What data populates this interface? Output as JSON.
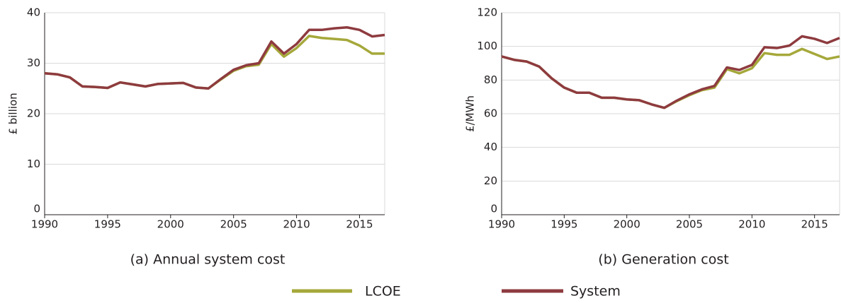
{
  "chart_data": [
    {
      "type": "line",
      "title": "(a) Annual system cost",
      "ylabel": "£ billion",
      "x": [
        1990,
        1991,
        1992,
        1993,
        1994,
        1995,
        1996,
        1997,
        1998,
        1999,
        2000,
        2001,
        2002,
        2003,
        2004,
        2005,
        2006,
        2007,
        2008,
        2009,
        2010,
        2011,
        2012,
        2013,
        2014,
        2015,
        2016,
        2017
      ],
      "xlim": [
        1990,
        2017
      ],
      "xticks": [
        1990,
        1995,
        2000,
        2005,
        2010,
        2015
      ],
      "ylim": [
        0,
        40
      ],
      "yticks": [
        0,
        10,
        20,
        30,
        40
      ],
      "grid": true,
      "legend": "bottom",
      "series": [
        {
          "name": "LCOE",
          "color": "#a5a83a",
          "values": [
            28,
            27.8,
            27.2,
            25.4,
            25.3,
            25.1,
            26.2,
            25.8,
            25.4,
            25.9,
            26,
            26.1,
            25.2,
            25,
            26.8,
            28.5,
            29.4,
            29.7,
            33.8,
            31.3,
            33,
            35.4,
            35,
            34.8,
            34.6,
            33.5,
            31.9,
            31.9
          ]
        },
        {
          "name": "System",
          "color": "#8e3b3f",
          "values": [
            28,
            27.8,
            27.2,
            25.4,
            25.3,
            25.1,
            26.2,
            25.8,
            25.4,
            25.9,
            26,
            26.1,
            25.2,
            25,
            26.9,
            28.7,
            29.6,
            30,
            34.3,
            31.9,
            33.8,
            36.6,
            36.6,
            36.9,
            37.1,
            36.6,
            35.3,
            35.6
          ]
        }
      ]
    },
    {
      "type": "line",
      "title": "(b) Generation cost",
      "ylabel": "£/MWh",
      "x": [
        1990,
        1991,
        1992,
        1993,
        1994,
        1995,
        1996,
        1997,
        1998,
        1999,
        2000,
        2001,
        2002,
        2003,
        2004,
        2005,
        2006,
        2007,
        2008,
        2009,
        2010,
        2011,
        2012,
        2013,
        2014,
        2015,
        2016,
        2017
      ],
      "xlim": [
        1990,
        2017
      ],
      "xticks": [
        1990,
        1995,
        2000,
        2005,
        2010,
        2015
      ],
      "ylim": [
        0,
        120
      ],
      "yticks": [
        0,
        20,
        40,
        60,
        80,
        100,
        120
      ],
      "grid": true,
      "series": [
        {
          "color": "#a5a83a",
          "values": [
            94,
            92,
            91,
            88,
            81,
            75.5,
            72.5,
            72.5,
            69.5,
            69.5,
            68.5,
            68,
            65.5,
            63.5,
            67.5,
            71,
            74,
            75.5,
            86.5,
            84,
            87,
            96,
            95,
            95,
            98.5,
            95.5,
            92.5,
            94
          ]
        },
        {
          "color": "#8e3b3f",
          "values": [
            94,
            92,
            91,
            88,
            81,
            75.5,
            72.5,
            72.5,
            69.5,
            69.5,
            68.5,
            68,
            65.5,
            63.5,
            67.8,
            71.5,
            74.5,
            76.5,
            87.5,
            86,
            89,
            99.5,
            99,
            100.5,
            106,
            104.5,
            102,
            105
          ]
        }
      ]
    }
  ]
}
